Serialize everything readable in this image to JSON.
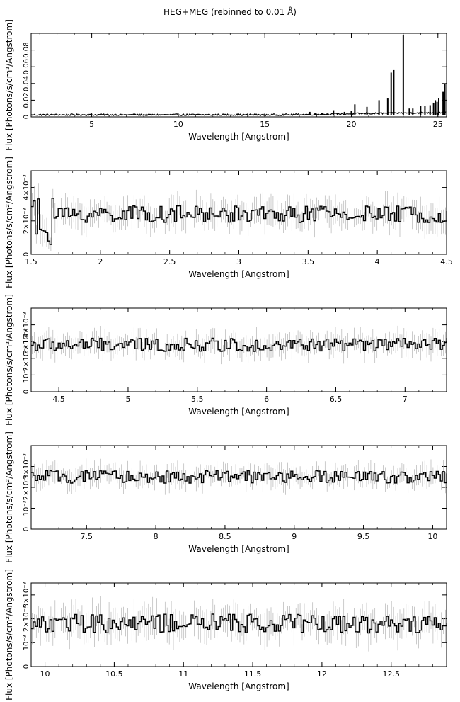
{
  "figure_title": "HEG+MEG (rebinned to 0.01 Å)",
  "chart_data": [
    {
      "type": "line",
      "xlabel": "Wavelength [Angstrom]",
      "ylabel": "Flux [Photons/s/cm²/Angstrom]",
      "xlim": [
        1.5,
        25.5
      ],
      "ylim": [
        0,
        0.1
      ],
      "xticks": [
        5,
        10,
        15,
        20,
        25
      ],
      "yticks": [
        0,
        0.02,
        0.04,
        0.06,
        0.08
      ],
      "ytick_labels": [
        "0",
        "0.02",
        "0.04",
        "0.06",
        "0.08"
      ],
      "baseline": 0.0025,
      "lines": [
        {
          "x": 17.6,
          "y": 0.006
        },
        {
          "x": 17.9,
          "y": 0.004
        },
        {
          "x": 18.3,
          "y": 0.005
        },
        {
          "x": 18.6,
          "y": 0.004
        },
        {
          "x": 18.97,
          "y": 0.008
        },
        {
          "x": 19.2,
          "y": 0.005
        },
        {
          "x": 19.6,
          "y": 0.006
        },
        {
          "x": 20.0,
          "y": 0.007
        },
        {
          "x": 20.2,
          "y": 0.015
        },
        {
          "x": 20.9,
          "y": 0.012
        },
        {
          "x": 21.6,
          "y": 0.02
        },
        {
          "x": 22.1,
          "y": 0.022
        },
        {
          "x": 22.3,
          "y": 0.053
        },
        {
          "x": 22.45,
          "y": 0.056
        },
        {
          "x": 23.0,
          "y": 0.098
        },
        {
          "x": 23.35,
          "y": 0.01
        },
        {
          "x": 23.55,
          "y": 0.01
        },
        {
          "x": 24.0,
          "y": 0.013
        },
        {
          "x": 24.25,
          "y": 0.013
        },
        {
          "x": 24.55,
          "y": 0.014
        },
        {
          "x": 24.75,
          "y": 0.017
        },
        {
          "x": 24.85,
          "y": 0.02
        },
        {
          "x": 24.95,
          "y": 0.018
        },
        {
          "x": 25.05,
          "y": 0.022
        },
        {
          "x": 25.3,
          "y": 0.03
        },
        {
          "x": 25.4,
          "y": 0.04
        }
      ]
    },
    {
      "type": "line",
      "xlabel": "Wavelength [Angstrom]",
      "ylabel": "Flux [Photons/s/cm²/Angstrom]",
      "xlim": [
        1.5,
        4.5
      ],
      "ylim": [
        0,
        0.005
      ],
      "xticks": [
        1.5,
        2,
        2.5,
        3,
        3.5,
        4,
        4.5
      ],
      "yticks": [
        0,
        0.002,
        0.004
      ],
      "ytick_labels": [
        "0",
        "2×10⁻³",
        "4×10⁻³"
      ],
      "level": 0.0024,
      "scatter": 0.0005
    },
    {
      "type": "line",
      "xlabel": "Wavelength [Angstrom]",
      "ylabel": "Flux [Photons/s/cm²/Angstrom]",
      "xlim": [
        4.3,
        7.3
      ],
      "ylim": [
        0,
        0.005
      ],
      "xticks": [
        4.5,
        5,
        5.5,
        6,
        6.5,
        7
      ],
      "yticks": [
        0,
        0.001,
        0.002,
        0.003,
        0.004
      ],
      "ytick_labels": [
        "0",
        "10⁻³",
        "2×10⁻³",
        "3×10⁻³",
        "4×10⁻³"
      ],
      "level": 0.0028,
      "scatter": 0.0004
    },
    {
      "type": "line",
      "xlabel": "Wavelength [Angstrom]",
      "ylabel": "Flux [Photons/s/cm²/Angstrom]",
      "xlim": [
        7.1,
        10.1
      ],
      "ylim": [
        0,
        0.004
      ],
      "xticks": [
        7.5,
        8,
        8.5,
        9,
        9.5,
        10
      ],
      "yticks": [
        0,
        0.001,
        0.002,
        0.003
      ],
      "ytick_labels": [
        "0",
        "10⁻³",
        "2×10⁻³",
        "3×10⁻³"
      ],
      "level": 0.0025,
      "scatter": 0.0003
    },
    {
      "type": "line",
      "xlabel": "Wavelength [Angstrom]",
      "ylabel": "Flux [Photons/s/cm²/Angstrom]",
      "xlim": [
        9.9,
        12.9
      ],
      "ylim": [
        0,
        0.0035
      ],
      "xticks": [
        10,
        10.5,
        11,
        11.5,
        12,
        12.5
      ],
      "yticks": [
        0,
        0.001,
        0.002,
        0.003
      ],
      "ytick_labels": [
        "0",
        "10⁻³",
        "2×10⁻³",
        "3×10⁻³"
      ],
      "level": 0.0018,
      "scatter": 0.0004
    }
  ]
}
